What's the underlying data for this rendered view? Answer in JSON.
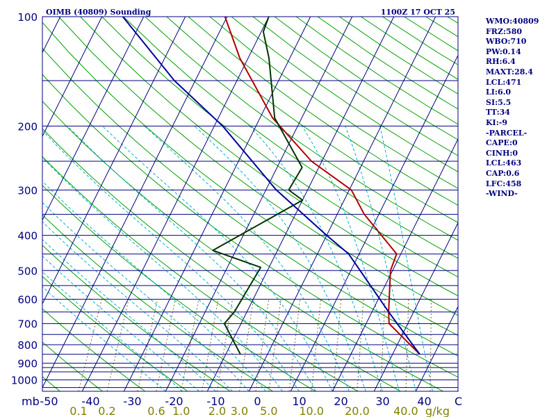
{
  "chart_data": {
    "type": "line",
    "title": "OIMB (40809) Sounding",
    "time": "1100Z 17 OCT 25",
    "x_unit": "C",
    "y_unit": "mb",
    "mixing_ratio_unit": "g/kg",
    "pressure_ticks": [
      100,
      200,
      300,
      400,
      500,
      600,
      700,
      800,
      900,
      1000
    ],
    "isobars": [
      100,
      150,
      200,
      250,
      300,
      350,
      400,
      450,
      500,
      550,
      600,
      650,
      700,
      750,
      800,
      850,
      900,
      925,
      950,
      1000,
      1050
    ],
    "temperature_ticks": [
      -50,
      -40,
      -30,
      -20,
      -10,
      0,
      10,
      20,
      30,
      40
    ],
    "temperature_tick_labels": [
      "-50",
      "-40",
      "-30",
      "-20",
      "-10",
      "0",
      "10",
      "20",
      "30",
      "40"
    ],
    "mixing_ratio_labels": [
      "0.1",
      "0.2",
      "0.6",
      "1.0",
      "2.0",
      "3.0",
      "5.0",
      "10.0",
      "20.0",
      "40.0"
    ],
    "series": [
      {
        "key": "temperature",
        "color": "#b00000",
        "points": [
          [
            850,
            36.5
          ],
          [
            700,
            25.5
          ],
          [
            650,
            24.0
          ],
          [
            500,
            19.5
          ],
          [
            450,
            19.0
          ],
          [
            350,
            6.5
          ],
          [
            300,
            0.5
          ],
          [
            250,
            -12.5
          ],
          [
            190,
            -27.0
          ],
          [
            130,
            -42.0
          ],
          [
            100,
            -50.5
          ]
        ]
      },
      {
        "key": "dewpoint",
        "color": "#003300",
        "points": [
          [
            850,
            -6.5
          ],
          [
            700,
            -14.0
          ],
          [
            650,
            -13.0
          ],
          [
            490,
            -12.0
          ],
          [
            440,
            -25.5
          ],
          [
            320,
            -10.0
          ],
          [
            300,
            -14.5
          ],
          [
            260,
            -14.0
          ],
          [
            190,
            -26.5
          ],
          [
            130,
            -35.0
          ],
          [
            110,
            -39.5
          ],
          [
            100,
            -40.0
          ]
        ]
      },
      {
        "key": "parcel",
        "color": "#0000a0",
        "points": [
          [
            850,
            36.5
          ],
          [
            650,
            24.0
          ],
          [
            450,
            7.5
          ],
          [
            400,
            0.0
          ],
          [
            300,
            -17.5
          ],
          [
            200,
            -38.0
          ],
          [
            150,
            -55.0
          ],
          [
            100,
            -75.0
          ]
        ]
      }
    ],
    "stats": [
      "WMO:40809",
      "FRZ:580",
      "WBO:710",
      "PW:0.14",
      "RH:6.4",
      "MAXT:28.4",
      "LCL:471",
      "LI:6.0",
      "SI:5.5",
      "TT:34",
      "KI:-9",
      "-PARCEL-",
      "CAPE:0",
      "CINH:0",
      "LCL:463",
      "CAP:0.6",
      "LFC:458",
      "-WIND-"
    ]
  },
  "colors": {
    "isobar": "#000080",
    "isotherm": "#000080",
    "dry_adiabat": "#00a000",
    "moist_adiabat": "#00b0d0",
    "mixing_ratio": "#707030",
    "tick_text": "#000080",
    "mixing_ratio_text": "#808000"
  }
}
